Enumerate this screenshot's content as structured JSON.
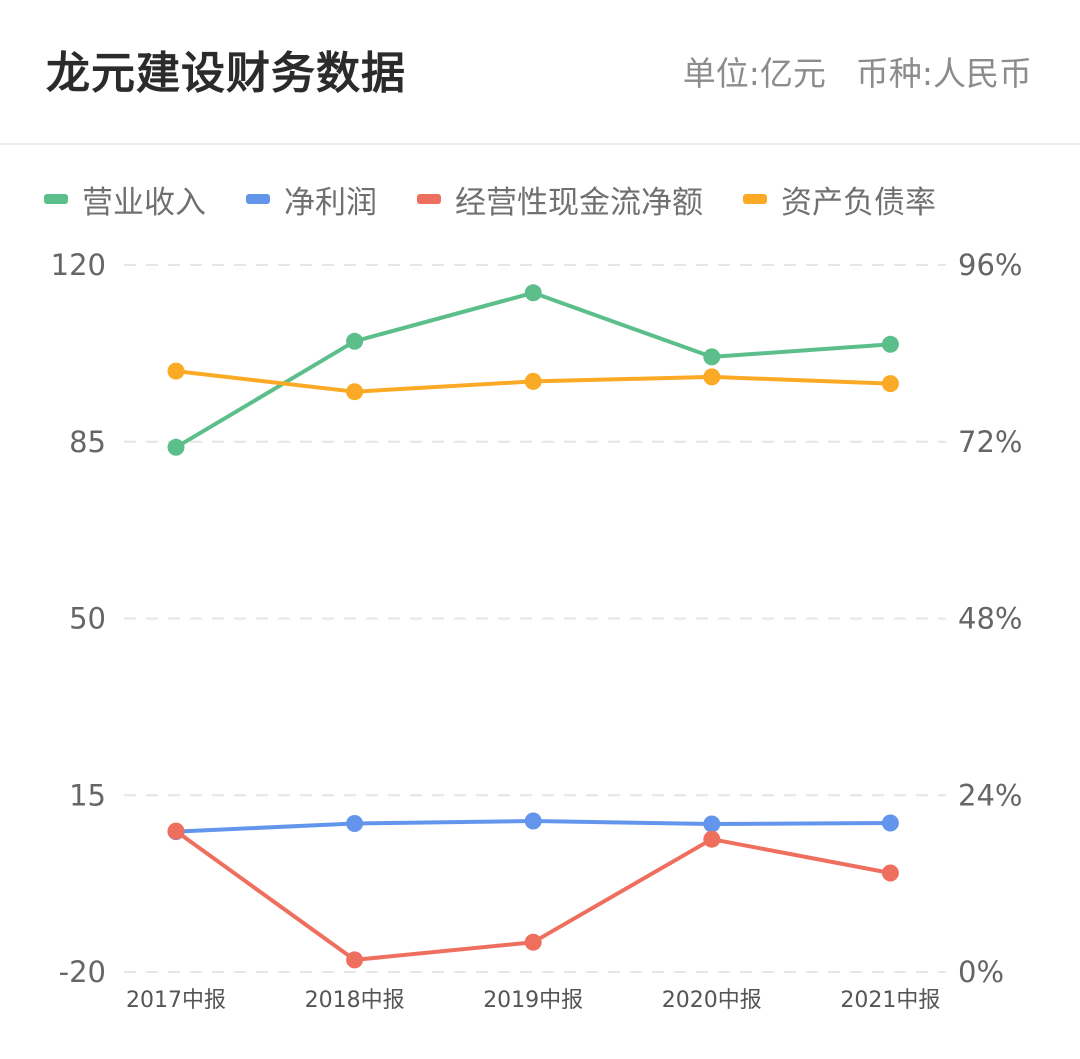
{
  "header": {
    "title": "龙元建设财务数据",
    "unit": "单位:亿元",
    "currency": "币种:人民币"
  },
  "chart_data": {
    "type": "line",
    "categories": [
      "2017中报",
      "2018中报",
      "2019中报",
      "2020中报",
      "2021中报"
    ],
    "left_axis": {
      "ylim": [
        -20,
        120
      ],
      "ticks": [
        "120",
        "85",
        "50",
        "15",
        "-20"
      ],
      "tick_values": [
        120,
        85,
        50,
        15,
        -20
      ]
    },
    "right_axis": {
      "ylim": [
        0,
        96
      ],
      "ticks": [
        "96%",
        "72%",
        "48%",
        "24%",
        "0%"
      ],
      "tick_values": [
        96,
        72,
        48,
        24,
        0
      ]
    },
    "grid": true,
    "legend_position": "top",
    "series": [
      {
        "name": "营业收入",
        "color": "#5cbf8b",
        "axis": "left",
        "values": [
          83.9,
          104.9,
          114.5,
          101.8,
          104.3
        ]
      },
      {
        "name": "净利润",
        "color": "#6495ed",
        "axis": "left",
        "values": [
          7.8,
          9.4,
          9.9,
          9.3,
          9.5
        ]
      },
      {
        "name": "经营性现金流净额",
        "color": "#ef6f5e",
        "axis": "left",
        "values": [
          7.9,
          -17.6,
          -14.1,
          6.3,
          -0.4
        ]
      },
      {
        "name": "资产负债率",
        "color": "#fbaa26",
        "axis": "right",
        "values": [
          81.6,
          78.8,
          80.2,
          80.8,
          79.9
        ]
      }
    ]
  }
}
